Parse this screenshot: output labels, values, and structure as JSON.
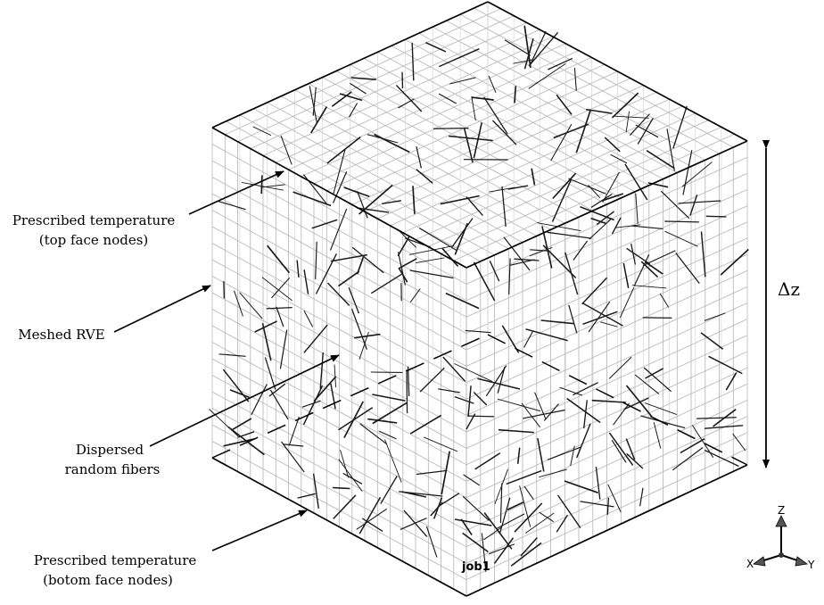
{
  "annotations": {
    "top_face_line1": "Prescribed temperature",
    "top_face_line2": "(top face nodes)",
    "rve": "Meshed RVE",
    "fibers_line1": "Dispersed",
    "fibers_line2": "random fibers",
    "bottom_face_line1": "Prescribed temperature",
    "bottom_face_line2": "(botom face nodes)"
  },
  "dimension_label": "Δz",
  "job_label": "job1",
  "triad": {
    "z": "Z",
    "x": "X",
    "y": "Y"
  },
  "colors": {
    "mesh": "#b4b4b4",
    "edges": "#000000",
    "fibers": "#1a1a1a"
  }
}
